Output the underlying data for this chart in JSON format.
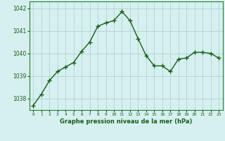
{
  "x": [
    0,
    1,
    2,
    3,
    4,
    5,
    6,
    7,
    8,
    9,
    10,
    11,
    12,
    13,
    14,
    15,
    16,
    17,
    18,
    19,
    20,
    21,
    22,
    23
  ],
  "y": [
    1037.7,
    1038.2,
    1038.8,
    1039.2,
    1039.4,
    1039.6,
    1040.1,
    1040.5,
    1041.2,
    1041.35,
    1041.45,
    1041.85,
    1041.45,
    1040.65,
    1039.9,
    1039.45,
    1039.45,
    1039.2,
    1039.75,
    1039.8,
    1040.05,
    1040.05,
    1040.0,
    1039.8
  ],
  "line_color": "#1a5c1a",
  "marker_color": "#1a5c1a",
  "bg_color": "#d6f0f0",
  "grid_color": "#a8cece",
  "border_color": "#2d7a2d",
  "xlabel": "Graphe pression niveau de la mer (hPa)",
  "xlabel_color": "#1a5c1a",
  "ylabel_ticks": [
    1038,
    1039,
    1040,
    1041,
    1042
  ],
  "xlim": [
    -0.5,
    23.5
  ],
  "ylim": [
    1037.5,
    1042.3
  ],
  "tick_color": "#1a5c1a",
  "marker_size": 4,
  "line_width": 1.0
}
